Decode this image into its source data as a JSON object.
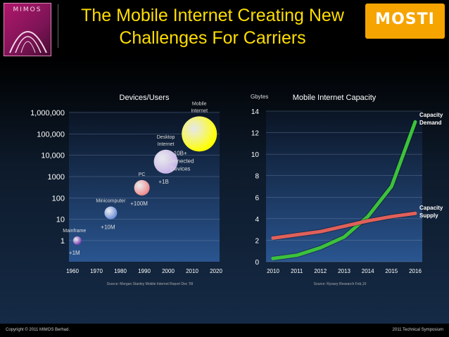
{
  "header": {
    "title_line1": "The Mobile Internet Creating New",
    "title_line2": "Challenges For Carriers",
    "left_logo_text": "MIMOS",
    "right_logo_text": "MOSTI"
  },
  "footer": {
    "left": "Copyright © 2011 MIMOS Berhad.",
    "right": "2011 Technical Symposium"
  },
  "chart_data": [
    {
      "type": "scatter",
      "title": "Devices/Users",
      "log_scale_y": true,
      "y_tick_labels": [
        "1",
        "10",
        "100",
        "1000",
        "10,000",
        "100,000",
        "1,000,000"
      ],
      "x_ticks": [
        1960,
        1970,
        1980,
        1990,
        2000,
        2010,
        2020
      ],
      "xlim": [
        1960,
        2020
      ],
      "points": [
        {
          "label": "Mainframe",
          "x": 1962,
          "y": 1,
          "annotation": "+1M",
          "color": "#7a3fb0"
        },
        {
          "label": "Minicomputer",
          "x": 1976,
          "y": 20,
          "annotation": "+10M",
          "color": "#6f8fd8"
        },
        {
          "label": "PC",
          "x": 1989,
          "y": 300,
          "annotation": "+100M",
          "color": "#f08a8a"
        },
        {
          "label": "Desktop Internet",
          "x": 1999,
          "y": 5000,
          "annotation": "+1B",
          "color": "#c8b4e8"
        },
        {
          "label": "Mobile Internet",
          "x": 2013,
          "y": 100000,
          "annotation": "10B+ Connected Devices",
          "color": "#ffff00"
        }
      ],
      "source": "Source:  Morgan Stanley Mobile Internet Report Dec '09"
    },
    {
      "type": "line",
      "title": "Mobile Internet Capacity",
      "ylabel": "Gbytes",
      "x": [
        2010,
        2011,
        2012,
        2013,
        2014,
        2015,
        2016
      ],
      "ylim": [
        0,
        14
      ],
      "y_ticks": [
        0,
        2,
        4,
        6,
        8,
        10,
        12,
        14
      ],
      "series": [
        {
          "name": "Capacity Demand",
          "values": [
            0.3,
            0.6,
            1.3,
            2.3,
            4.2,
            7.0,
            13.0
          ],
          "color": "#3cc23c"
        },
        {
          "name": "Capacity Supply",
          "values": [
            2.2,
            2.5,
            2.8,
            3.3,
            3.8,
            4.2,
            4.5
          ],
          "color": "#e0605a"
        }
      ],
      "source": "Source:  Rysavy Research  Feb,10"
    }
  ]
}
